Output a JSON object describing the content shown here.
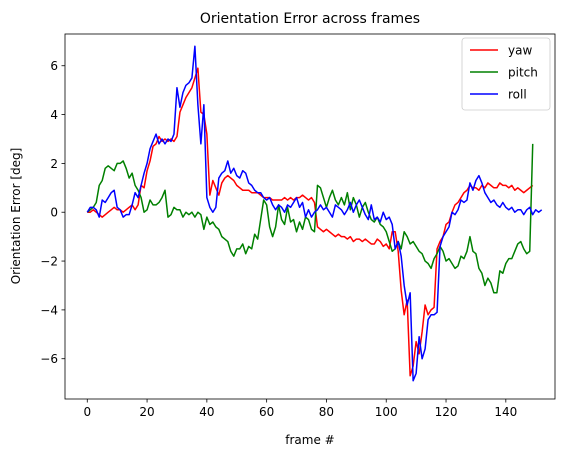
{
  "chart_data": {
    "type": "line",
    "title": "Orientation Error across frames",
    "xlabel": "frame #",
    "ylabel": "Orientation Error [deg]",
    "xlim": [
      -7.45,
      156.45
    ],
    "ylim": [
      -7.65,
      7.3
    ],
    "xticks": [
      0,
      20,
      40,
      60,
      80,
      100,
      120,
      140
    ],
    "yticks": [
      -6,
      -4,
      -2,
      0,
      2,
      4,
      6
    ],
    "xtick_labels": [
      "0",
      "20",
      "40",
      "60",
      "80",
      "100",
      "120",
      "140"
    ],
    "ytick_labels": [
      "−6",
      "−4",
      "−2",
      "0",
      "2",
      "4",
      "6"
    ],
    "grid": false,
    "legend_position": "upper right",
    "series": [
      {
        "name": "yaw",
        "color": "#ff0000",
        "values": [
          0,
          0,
          0.1,
          0,
          -0.1,
          -0.2,
          -0.1,
          0,
          0.1,
          0.2,
          0.1,
          0.1,
          0,
          0.1,
          0.2,
          0.3,
          0.1,
          0.3,
          1.1,
          1.0,
          1.7,
          2.1,
          2.7,
          2.8,
          3.1,
          2.9,
          3.0,
          2.9,
          3.0,
          2.9,
          3.1,
          4.1,
          4.4,
          4.7,
          4.9,
          5.1,
          5.5,
          5.9,
          4.1,
          4.0,
          3.2,
          0.7,
          1.3,
          1.0,
          0.7,
          1.2,
          1.4,
          1.5,
          1.4,
          1.3,
          1.1,
          1.0,
          0.9,
          0.9,
          0.9,
          0.8,
          0.8,
          0.8,
          0.7,
          0.6,
          0.6,
          0.6,
          0.5,
          0.5,
          0.5,
          0.5,
          0.6,
          0.5,
          0.6,
          0.5,
          0.6,
          0.6,
          0.7,
          0.6,
          0.5,
          0.6,
          0.4,
          -0.6,
          -0.7,
          -0.8,
          -0.7,
          -0.8,
          -0.9,
          -1.0,
          -0.9,
          -1.0,
          -1.0,
          -1.1,
          -1.0,
          -1.2,
          -1.1,
          -1.1,
          -1.2,
          -1.1,
          -1.2,
          -1.3,
          -1.3,
          -1.1,
          -1.2,
          -1.4,
          -1.3,
          -1.5,
          -0.8,
          -0.8,
          -1.6,
          -3.2,
          -4.2,
          -3.6,
          -6.7,
          -6.3,
          -5.3,
          -5.8,
          -4.9,
          -3.8,
          -4.2,
          -4.0,
          -3.9,
          -1.5,
          -1.2,
          -1.0,
          -0.5,
          -0.4,
          0,
          0.3,
          0.4,
          0.6,
          0.8,
          0.9,
          1.1,
          1.0,
          1.0,
          0.9,
          1.1,
          1.0,
          1.2,
          1.1,
          1.0,
          1.0,
          1.2,
          1.1,
          1.1,
          1.0,
          1.1,
          0.9,
          1.0,
          0.9,
          0.8,
          0.9,
          1.0,
          1.1
        ]
      },
      {
        "name": "pitch",
        "color": "#008000",
        "values": [
          0,
          0.1,
          0.2,
          0.4,
          1.1,
          1.3,
          1.8,
          1.9,
          1.8,
          1.7,
          2.0,
          2.0,
          2.1,
          1.8,
          1.4,
          1.6,
          1.1,
          0.9,
          0.6,
          0.0,
          0.1,
          0.5,
          0.3,
          0.3,
          0.4,
          0.6,
          0.9,
          -0.2,
          -0.1,
          0.2,
          0.1,
          0.1,
          -0.2,
          0.0,
          -0.1,
          0.0,
          -0.2,
          0.0,
          -0.1,
          -0.7,
          -0.2,
          -0.5,
          -0.4,
          -0.6,
          -0.7,
          -1.0,
          -1.1,
          -1.2,
          -1.6,
          -1.8,
          -1.5,
          -1.5,
          -1.3,
          -1.7,
          -1.4,
          -1.5,
          -0.9,
          -1.1,
          -0.3,
          0.5,
          0.3,
          -0.6,
          -1.0,
          -0.6,
          0.3,
          -0.3,
          -0.5,
          0.2,
          -0.4,
          -0.3,
          -0.8,
          -0.4,
          -0.7,
          -0.2,
          -0.3,
          -0.7,
          -0.8,
          1.1,
          1.0,
          0.6,
          0.2,
          0.6,
          0.9,
          0.5,
          0.3,
          0.6,
          0.3,
          0.8,
          0.1,
          0.6,
          0.3,
          -0.2,
          0.2,
          0.4,
          0.0,
          -0.3,
          -0.4,
          -0.2,
          -0.5,
          -0.6,
          -0.8,
          -1.2,
          -1.6,
          -1.5,
          -1.2,
          -1.5,
          -0.8,
          -1.0,
          -1.3,
          -1.2,
          -1.4,
          -1.6,
          -1.7,
          -2.0,
          -2.1,
          -2.3,
          -1.9,
          -1.7,
          -1.4,
          -1.6,
          -2.0,
          -1.9,
          -2.1,
          -2.3,
          -2.2,
          -1.8,
          -1.9,
          -1.6,
          -1.0,
          -1.6,
          -1.7,
          -2.3,
          -2.5,
          -3.0,
          -2.7,
          -2.9,
          -3.3,
          -3.3,
          -2.4,
          -2.5,
          -2.1,
          -1.9,
          -1.9,
          -1.6,
          -1.3,
          -1.2,
          -1.5,
          -1.7,
          -1.6,
          2.8
        ]
      },
      {
        "name": "roll",
        "color": "#0000ff",
        "values": [
          0,
          0.2,
          0.2,
          0.1,
          -0.2,
          0.5,
          0.4,
          0.6,
          0.8,
          0.9,
          0.2,
          0.1,
          -0.2,
          -0.1,
          -0.1,
          0.3,
          0.8,
          0.6,
          1.1,
          1.6,
          2.0,
          2.6,
          2.9,
          3.2,
          2.8,
          3.0,
          2.8,
          3.0,
          2.9,
          3.2,
          5.1,
          4.3,
          4.9,
          5.2,
          5.3,
          5.5,
          6.8,
          4.4,
          2.8,
          4.4,
          0.6,
          0.2,
          0.0,
          0.2,
          1.4,
          1.6,
          1.7,
          2.1,
          1.6,
          1.8,
          1.5,
          1.4,
          1.7,
          1.6,
          1.2,
          1.1,
          0.9,
          0.8,
          0.8,
          0.6,
          0.5,
          0.6,
          0.3,
          0.1,
          0.3,
          0.2,
          0.0,
          0.3,
          0.2,
          0.4,
          0.6,
          0.2,
          0.4,
          -0.2,
          0.1,
          -0.2,
          0.0,
          0.1,
          0.3,
          0.1,
          0.2,
          0.0,
          -0.2,
          0.3,
          0.2,
          0.1,
          -0.1,
          0.1,
          0.4,
          0.0,
          0.3,
          0.5,
          0.2,
          -0.1,
          -0.3,
          0.3,
          -0.3,
          -0.2,
          -0.4,
          0.0,
          -0.3,
          -0.2,
          -0.5,
          -1.5,
          -1.2,
          -1.8,
          -3.0,
          -3.8,
          -3.3,
          -6.9,
          -6.6,
          -5.1,
          -6.0,
          -5.6,
          -4.4,
          -4.2,
          -4.2,
          -4.1,
          -1.4,
          -1.0,
          -0.8,
          -0.6,
          0.0,
          -0.1,
          0.1,
          0.5,
          0.4,
          0.5,
          1.2,
          0.9,
          1.3,
          1.5,
          1.2,
          0.8,
          0.6,
          0.4,
          0.5,
          0.3,
          0.2,
          0.4,
          0.2,
          0.1,
          0.2,
          0.0,
          0.1,
          0.1,
          -0.1,
          0.1,
          0.2,
          -0.1,
          0.1,
          0.0,
          0.1
        ]
      }
    ]
  }
}
